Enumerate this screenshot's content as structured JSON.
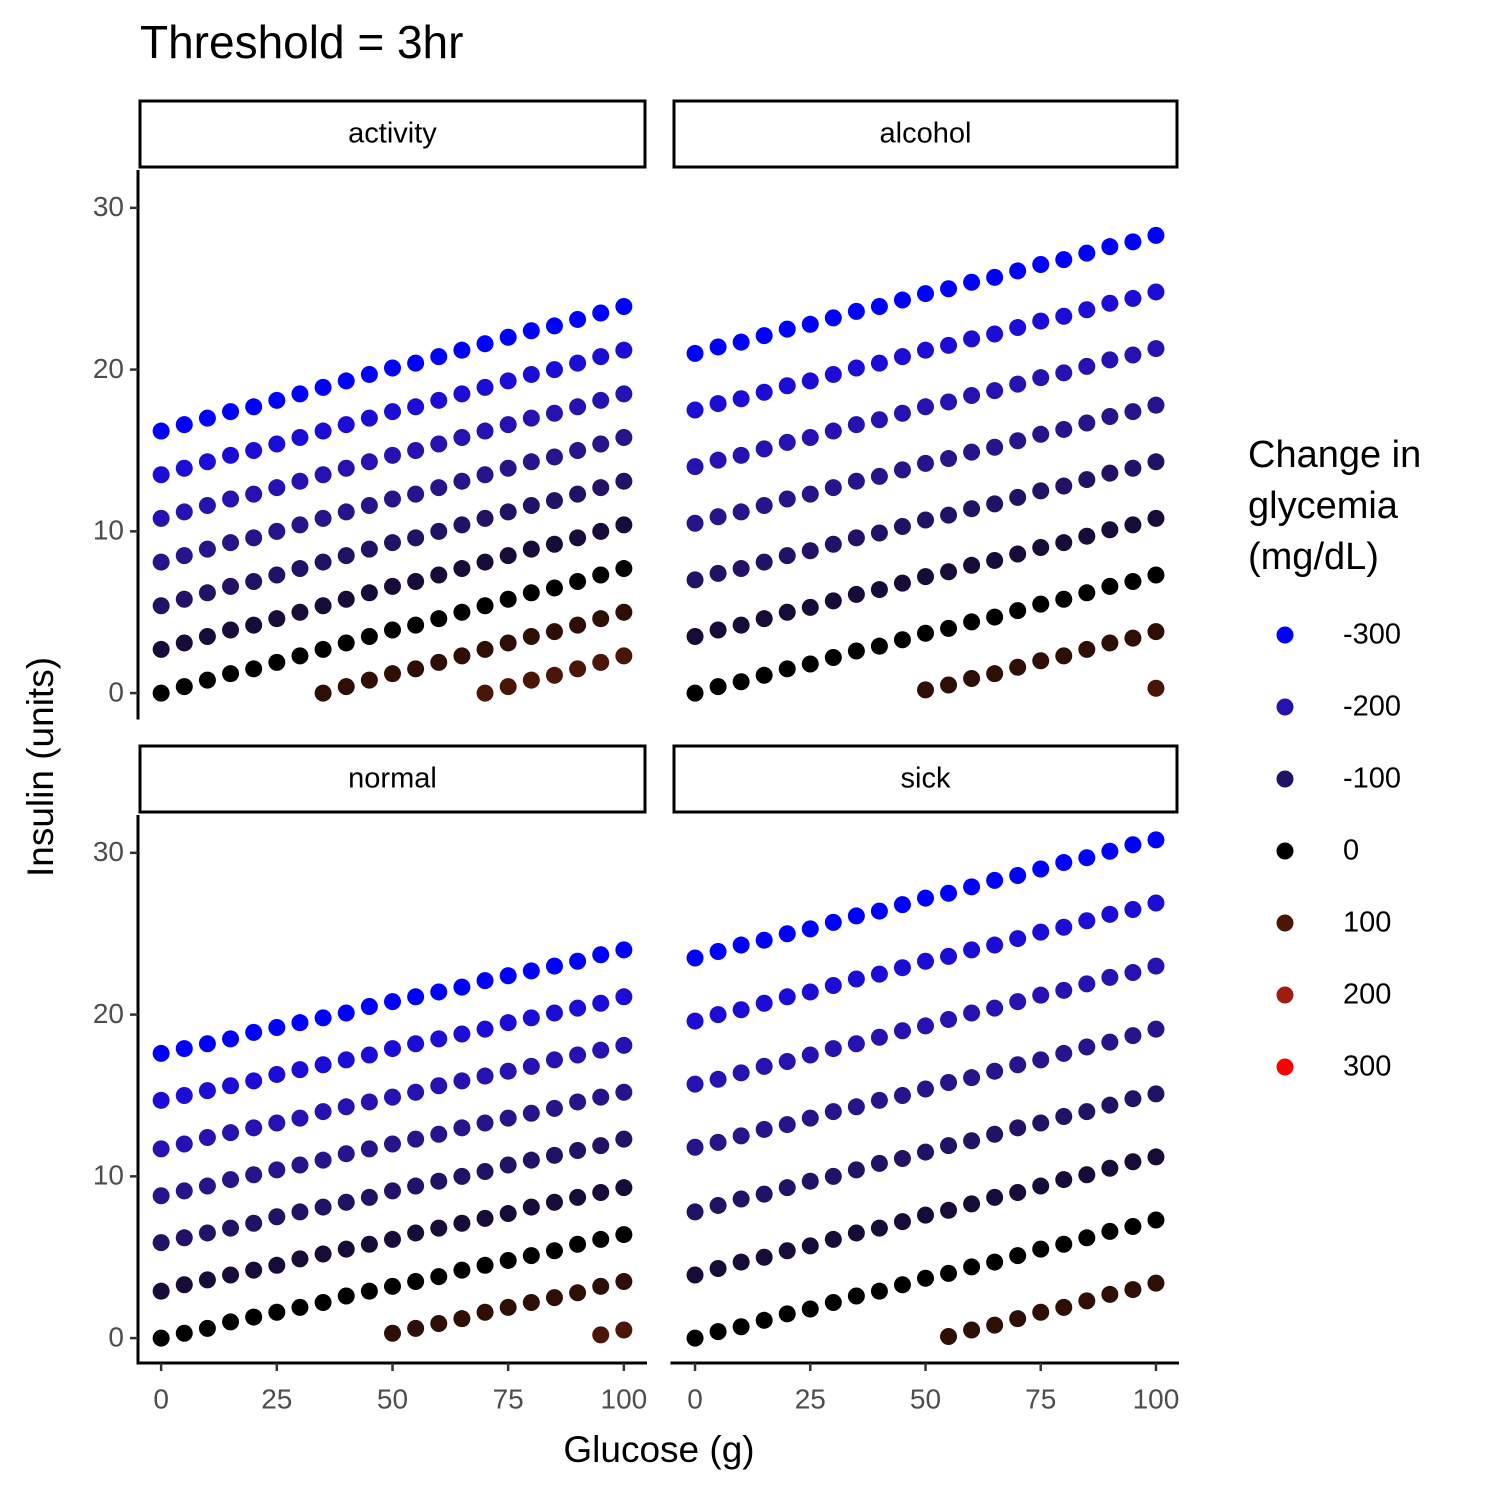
{
  "chart_data": {
    "type": "scatter",
    "title": "Threshold = 3hr",
    "x_label": "Glucose (g)",
    "y_label": "Insulin (units)",
    "x": [
      0,
      5,
      10,
      15,
      20,
      25,
      30,
      35,
      40,
      45,
      50,
      55,
      60,
      65,
      70,
      75,
      80,
      85,
      90,
      95,
      100
    ],
    "xlim": [
      -5,
      105
    ],
    "xticks": [
      0,
      25,
      50,
      75,
      100
    ],
    "ylim": [
      -1.54,
      32.34
    ],
    "yticks": [
      0,
      10,
      20,
      30
    ],
    "legend_title": "Change in glycemia (mg/dL)",
    "legend": [
      {
        "label": -300,
        "color": "#0000FF"
      },
      {
        "label": -200,
        "color": "#2612B0"
      },
      {
        "label": -100,
        "color": "#221265"
      },
      {
        "label": 0,
        "color": "#000000"
      },
      {
        "label": 100,
        "color": "#4A1608"
      },
      {
        "label": 200,
        "color": "#A11C10"
      },
      {
        "label": 300,
        "color": "#FF0000"
      }
    ],
    "facets": [
      {
        "label": "activity",
        "series": [
          {
            "color": "#0000FF",
            "values": [
              16.2,
              16.6,
              17.0,
              17.4,
              17.7,
              18.1,
              18.5,
              18.9,
              19.3,
              19.7,
              20.1,
              20.4,
              20.8,
              21.2,
              21.6,
              22.0,
              22.4,
              22.7,
              23.1,
              23.5,
              23.9
            ]
          },
          {
            "color": "#1C0DD6",
            "values": [
              13.5,
              13.9,
              14.3,
              14.7,
              15.0,
              15.4,
              15.8,
              16.2,
              16.6,
              17.0,
              17.4,
              17.7,
              18.1,
              18.5,
              18.9,
              19.3,
              19.7,
              20.0,
              20.4,
              20.8,
              21.2
            ]
          },
          {
            "color": "#2612B0",
            "values": [
              10.8,
              11.2,
              11.6,
              12.0,
              12.3,
              12.7,
              13.1,
              13.5,
              13.9,
              14.3,
              14.7,
              15.0,
              15.4,
              15.8,
              16.2,
              16.6,
              17.0,
              17.3,
              17.7,
              18.1,
              18.5
            ]
          },
          {
            "color": "#27138A",
            "values": [
              8.1,
              8.5,
              8.9,
              9.3,
              9.6,
              10.0,
              10.4,
              10.8,
              11.2,
              11.6,
              12.0,
              12.3,
              12.7,
              13.1,
              13.5,
              13.9,
              14.3,
              14.6,
              15.0,
              15.4,
              15.8
            ]
          },
          {
            "color": "#221265",
            "values": [
              5.4,
              5.8,
              6.2,
              6.6,
              6.9,
              7.3,
              7.7,
              8.1,
              8.5,
              8.9,
              9.3,
              9.6,
              10.0,
              10.4,
              10.8,
              11.2,
              11.6,
              11.9,
              12.3,
              12.7,
              13.1
            ]
          },
          {
            "color": "#170C38",
            "values": [
              2.7,
              3.1,
              3.5,
              3.9,
              4.2,
              4.6,
              5.0,
              5.4,
              5.8,
              6.2,
              6.6,
              6.9,
              7.3,
              7.7,
              8.1,
              8.5,
              8.9,
              9.2,
              9.6,
              10.0,
              10.4
            ]
          },
          {
            "color": "#000000",
            "values": [
              0,
              0.4,
              0.8,
              1.2,
              1.5,
              1.9,
              2.3,
              2.7,
              3.1,
              3.5,
              3.9,
              4.2,
              4.6,
              5.0,
              5.4,
              5.8,
              6.2,
              6.5,
              6.9,
              7.3,
              7.7
            ]
          },
          {
            "color": "#2E0F05",
            "values": [
              null,
              null,
              null,
              null,
              null,
              null,
              null,
              0.0,
              0.4,
              0.8,
              1.2,
              1.5,
              1.9,
              2.3,
              2.7,
              3.1,
              3.5,
              3.8,
              4.2,
              4.6,
              5.0
            ]
          },
          {
            "color": "#4A1608",
            "values": [
              null,
              null,
              null,
              null,
              null,
              null,
              null,
              null,
              null,
              null,
              null,
              null,
              null,
              null,
              0.0,
              0.4,
              0.8,
              1.1,
              1.5,
              1.9,
              2.3
            ]
          }
        ]
      },
      {
        "label": "alcohol",
        "series": [
          {
            "color": "#0000FF",
            "values": [
              21.0,
              21.4,
              21.7,
              22.1,
              22.5,
              22.8,
              23.2,
              23.6,
              23.9,
              24.3,
              24.7,
              25.0,
              25.4,
              25.7,
              26.1,
              26.5,
              26.8,
              27.2,
              27.6,
              27.9,
              28.3
            ]
          },
          {
            "color": "#1C0DD6",
            "values": [
              17.5,
              17.9,
              18.2,
              18.6,
              19.0,
              19.3,
              19.7,
              20.1,
              20.4,
              20.8,
              21.2,
              21.5,
              21.9,
              22.2,
              22.6,
              23.0,
              23.3,
              23.7,
              24.1,
              24.4,
              24.8
            ]
          },
          {
            "color": "#2612B0",
            "values": [
              14.0,
              14.4,
              14.7,
              15.1,
              15.5,
              15.8,
              16.2,
              16.6,
              16.9,
              17.3,
              17.7,
              18.0,
              18.4,
              18.7,
              19.1,
              19.5,
              19.8,
              20.2,
              20.6,
              20.9,
              21.3
            ]
          },
          {
            "color": "#27138A",
            "values": [
              10.5,
              10.9,
              11.2,
              11.6,
              12.0,
              12.3,
              12.7,
              13.1,
              13.4,
              13.8,
              14.2,
              14.5,
              14.9,
              15.2,
              15.6,
              16.0,
              16.3,
              16.7,
              17.1,
              17.4,
              17.8
            ]
          },
          {
            "color": "#221265",
            "values": [
              7.0,
              7.4,
              7.7,
              8.1,
              8.5,
              8.8,
              9.2,
              9.6,
              9.9,
              10.3,
              10.7,
              11.0,
              11.4,
              11.7,
              12.1,
              12.5,
              12.8,
              13.2,
              13.6,
              13.9,
              14.3
            ]
          },
          {
            "color": "#170C38",
            "values": [
              3.5,
              3.9,
              4.2,
              4.6,
              5.0,
              5.3,
              5.7,
              6.1,
              6.4,
              6.8,
              7.2,
              7.5,
              7.9,
              8.2,
              8.6,
              9.0,
              9.3,
              9.7,
              10.1,
              10.4,
              10.8
            ]
          },
          {
            "color": "#000000",
            "values": [
              0,
              0.4,
              0.7,
              1.1,
              1.5,
              1.8,
              2.2,
              2.6,
              2.9,
              3.3,
              3.7,
              4.0,
              4.4,
              4.7,
              5.1,
              5.5,
              5.8,
              6.2,
              6.6,
              6.9,
              7.3
            ]
          },
          {
            "color": "#2E0F05",
            "values": [
              null,
              null,
              null,
              null,
              null,
              null,
              null,
              null,
              null,
              null,
              0.2,
              0.5,
              0.9,
              1.2,
              1.6,
              2.0,
              2.3,
              2.7,
              3.1,
              3.4,
              3.8
            ]
          },
          {
            "color": "#4A1608",
            "values": [
              null,
              null,
              null,
              null,
              null,
              null,
              null,
              null,
              null,
              null,
              null,
              null,
              null,
              null,
              null,
              null,
              null,
              null,
              null,
              null,
              0.3
            ]
          }
        ]
      },
      {
        "label": "normal",
        "series": [
          {
            "color": "#0000FF",
            "values": [
              17.6,
              17.9,
              18.2,
              18.5,
              18.9,
              19.2,
              19.5,
              19.8,
              20.1,
              20.5,
              20.8,
              21.1,
              21.4,
              21.7,
              22.1,
              22.4,
              22.7,
              23.0,
              23.3,
              23.7,
              24.0
            ]
          },
          {
            "color": "#1C0DD6",
            "values": [
              14.7,
              15.0,
              15.3,
              15.6,
              15.9,
              16.3,
              16.6,
              16.9,
              17.2,
              17.5,
              17.9,
              18.2,
              18.5,
              18.8,
              19.1,
              19.5,
              19.8,
              20.1,
              20.4,
              20.7,
              21.1
            ]
          },
          {
            "color": "#2612B0",
            "values": [
              11.7,
              12.0,
              12.4,
              12.7,
              13.0,
              13.3,
              13.6,
              14.0,
              14.3,
              14.6,
              14.9,
              15.2,
              15.6,
              15.9,
              16.2,
              16.5,
              16.8,
              17.2,
              17.5,
              17.8,
              18.1
            ]
          },
          {
            "color": "#27138A",
            "values": [
              8.8,
              9.1,
              9.4,
              9.8,
              10.1,
              10.4,
              10.7,
              11.0,
              11.4,
              11.7,
              12.0,
              12.3,
              12.6,
              13.0,
              13.3,
              13.6,
              13.9,
              14.2,
              14.6,
              14.9,
              15.2
            ]
          },
          {
            "color": "#221265",
            "values": [
              5.9,
              6.2,
              6.5,
              6.8,
              7.1,
              7.5,
              7.8,
              8.1,
              8.4,
              8.7,
              9.1,
              9.4,
              9.7,
              10.0,
              10.3,
              10.7,
              11.0,
              11.3,
              11.6,
              11.9,
              12.3
            ]
          },
          {
            "color": "#170C38",
            "values": [
              2.9,
              3.3,
              3.6,
              3.9,
              4.2,
              4.5,
              4.9,
              5.2,
              5.5,
              5.8,
              6.1,
              6.5,
              6.8,
              7.1,
              7.4,
              7.7,
              8.1,
              8.4,
              8.7,
              9.0,
              9.3
            ]
          },
          {
            "color": "#000000",
            "values": [
              0,
              0.3,
              0.6,
              1.0,
              1.3,
              1.6,
              1.9,
              2.2,
              2.6,
              2.9,
              3.2,
              3.5,
              3.8,
              4.2,
              4.5,
              4.8,
              5.1,
              5.4,
              5.8,
              6.1,
              6.4
            ]
          },
          {
            "color": "#2E0F05",
            "values": [
              null,
              null,
              null,
              null,
              null,
              null,
              null,
              null,
              null,
              null,
              0.3,
              0.6,
              0.9,
              1.2,
              1.6,
              1.9,
              2.2,
              2.5,
              2.8,
              3.2,
              3.5
            ]
          },
          {
            "color": "#4A1608",
            "values": [
              null,
              null,
              null,
              null,
              null,
              null,
              null,
              null,
              null,
              null,
              null,
              null,
              null,
              null,
              null,
              null,
              null,
              null,
              null,
              0.2,
              0.5
            ]
          }
        ]
      },
      {
        "label": "sick",
        "series": [
          {
            "color": "#0000FF",
            "values": [
              23.5,
              23.9,
              24.3,
              24.6,
              25.0,
              25.3,
              25.7,
              26.1,
              26.4,
              26.8,
              27.2,
              27.5,
              27.9,
              28.3,
              28.6,
              29.0,
              29.4,
              29.7,
              30.1,
              30.5,
              30.8
            ]
          },
          {
            "color": "#1C0DD6",
            "values": [
              19.6,
              20.0,
              20.3,
              20.7,
              21.1,
              21.4,
              21.8,
              22.2,
              22.5,
              22.9,
              23.3,
              23.6,
              24.0,
              24.3,
              24.7,
              25.1,
              25.4,
              25.8,
              26.2,
              26.5,
              26.9
            ]
          },
          {
            "color": "#2612B0",
            "values": [
              15.7,
              16.0,
              16.4,
              16.8,
              17.1,
              17.5,
              17.9,
              18.2,
              18.6,
              19.0,
              19.3,
              19.7,
              20.1,
              20.4,
              20.8,
              21.2,
              21.5,
              21.9,
              22.3,
              22.6,
              23.0
            ]
          },
          {
            "color": "#27138A",
            "values": [
              11.8,
              12.1,
              12.5,
              12.9,
              13.2,
              13.6,
              14.0,
              14.3,
              14.7,
              15.0,
              15.4,
              15.8,
              16.1,
              16.5,
              16.9,
              17.2,
              17.6,
              18.0,
              18.3,
              18.7,
              19.1
            ]
          },
          {
            "color": "#221265",
            "values": [
              7.8,
              8.2,
              8.6,
              8.9,
              9.3,
              9.7,
              10.0,
              10.4,
              10.8,
              11.1,
              11.5,
              11.9,
              12.2,
              12.6,
              13.0,
              13.3,
              13.7,
              14.0,
              14.4,
              14.8,
              15.1
            ]
          },
          {
            "color": "#170C38",
            "values": [
              3.9,
              4.3,
              4.7,
              5.0,
              5.4,
              5.7,
              6.1,
              6.5,
              6.8,
              7.2,
              7.6,
              7.9,
              8.3,
              8.7,
              9.0,
              9.4,
              9.8,
              10.1,
              10.5,
              10.9,
              11.2
            ]
          },
          {
            "color": "#000000",
            "values": [
              0,
              0.4,
              0.7,
              1.1,
              1.5,
              1.8,
              2.2,
              2.6,
              2.9,
              3.3,
              3.7,
              4.0,
              4.4,
              4.7,
              5.1,
              5.5,
              5.8,
              6.2,
              6.6,
              6.9,
              7.3
            ]
          },
          {
            "color": "#2E0F05",
            "values": [
              null,
              null,
              null,
              null,
              null,
              null,
              null,
              null,
              null,
              null,
              null,
              0.1,
              0.5,
              0.8,
              1.2,
              1.6,
              1.9,
              2.3,
              2.7,
              3.0,
              3.4
            ]
          }
        ]
      }
    ]
  }
}
